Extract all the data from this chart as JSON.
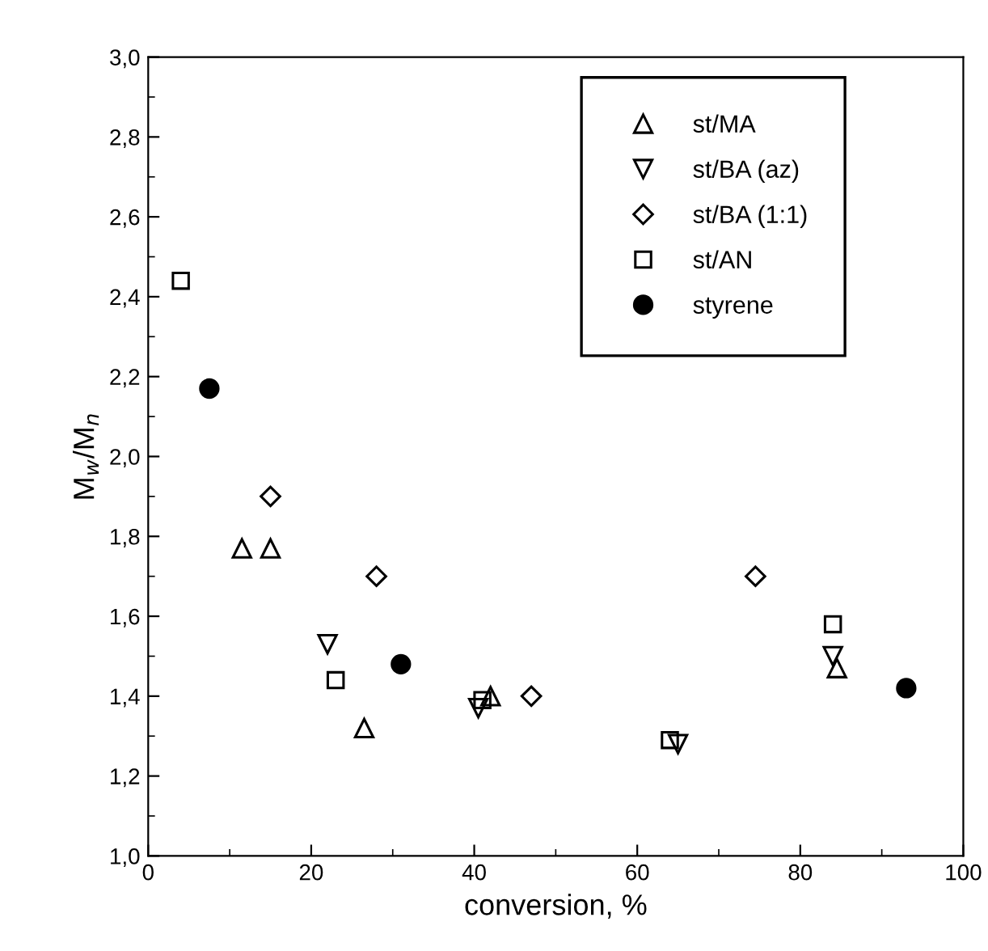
{
  "chart_data": {
    "type": "scatter",
    "xlabel": "conversion, %",
    "ylabel": "M$_{w}$/M$_{n}$",
    "xlim": [
      0,
      100
    ],
    "xticks": [
      0,
      20,
      40,
      60,
      80,
      100
    ],
    "ylim": [
      1.0,
      3.0
    ],
    "yticks": [
      {
        "value": 1.0,
        "label": "1,0"
      },
      {
        "value": 1.2,
        "label": "1,2"
      },
      {
        "value": 1.4,
        "label": "1,4"
      },
      {
        "value": 1.6,
        "label": "1,6"
      },
      {
        "value": 1.8,
        "label": "1,8"
      },
      {
        "value": 2.0,
        "label": "2,0"
      },
      {
        "value": 2.2,
        "label": "2,2"
      },
      {
        "value": 2.4,
        "label": "2,4"
      },
      {
        "value": 2.6,
        "label": "2,6"
      },
      {
        "value": 2.8,
        "label": "2,8"
      },
      {
        "value": 3.0,
        "label": "3,0"
      }
    ],
    "grid": false,
    "legend": "top right",
    "series": [
      {
        "name": "st/MA",
        "color": "#000000",
        "marker": "triangle",
        "x": [
          11.5,
          15,
          26.5,
          42,
          84.5
        ],
        "values": [
          1.77,
          1.77,
          1.32,
          1.4,
          1.47
        ]
      },
      {
        "name": "st/BA (az)",
        "color": "#000000",
        "marker": "triangle_down",
        "x": [
          22,
          40.5,
          65,
          84
        ],
        "values": [
          1.53,
          1.37,
          1.28,
          1.5
        ]
      },
      {
        "name": "st/BA (1:1)",
        "color": "#000000",
        "marker": "diamond",
        "x": [
          15,
          28,
          47,
          74.5
        ],
        "values": [
          1.9,
          1.7,
          1.4,
          1.7
        ]
      },
      {
        "name": "st/AN",
        "color": "#000000",
        "marker": "square",
        "x": [
          4,
          23,
          41,
          64,
          84
        ],
        "values": [
          2.44,
          1.44,
          1.39,
          1.29,
          1.58
        ]
      },
      {
        "name": "styrene",
        "color": "#000000",
        "marker": "circle_filled",
        "x": [
          7.5,
          31,
          93
        ],
        "values": [
          2.17,
          1.48,
          1.42
        ]
      }
    ]
  }
}
